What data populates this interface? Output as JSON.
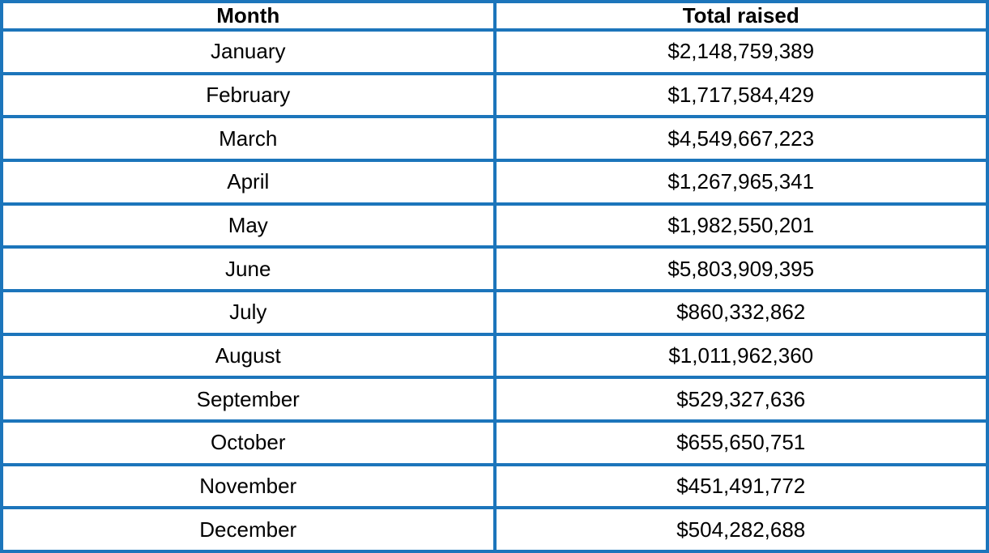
{
  "colors": {
    "border": "#1c75bb",
    "text": "#000000",
    "background": "#ffffff"
  },
  "table": {
    "headers": {
      "month": "Month",
      "total": "Total raised"
    },
    "rows": [
      {
        "month": "January",
        "total": "$2,148,759,389"
      },
      {
        "month": "February",
        "total": "$1,717,584,429"
      },
      {
        "month": "March",
        "total": "$4,549,667,223"
      },
      {
        "month": "April",
        "total": "$1,267,965,341"
      },
      {
        "month": "May",
        "total": "$1,982,550,201"
      },
      {
        "month": "June",
        "total": "$5,803,909,395"
      },
      {
        "month": "July",
        "total": "$860,332,862"
      },
      {
        "month": "August",
        "total": "$1,011,962,360"
      },
      {
        "month": "September",
        "total": "$529,327,636"
      },
      {
        "month": "October",
        "total": "$655,650,751"
      },
      {
        "month": "November",
        "total": "$451,491,772"
      },
      {
        "month": "December",
        "total": "$504,282,688"
      }
    ]
  },
  "chart_data": {
    "type": "table",
    "columns": [
      "Month",
      "Total raised"
    ],
    "categories": [
      "January",
      "February",
      "March",
      "April",
      "May",
      "June",
      "July",
      "August",
      "September",
      "October",
      "November",
      "December"
    ],
    "values": [
      2148759389,
      1717584429,
      4549667223,
      1267965341,
      1982550201,
      5803909395,
      860332862,
      1011962360,
      529327636,
      655650751,
      451491772,
      504282688
    ],
    "value_format": "USD",
    "title": ""
  }
}
